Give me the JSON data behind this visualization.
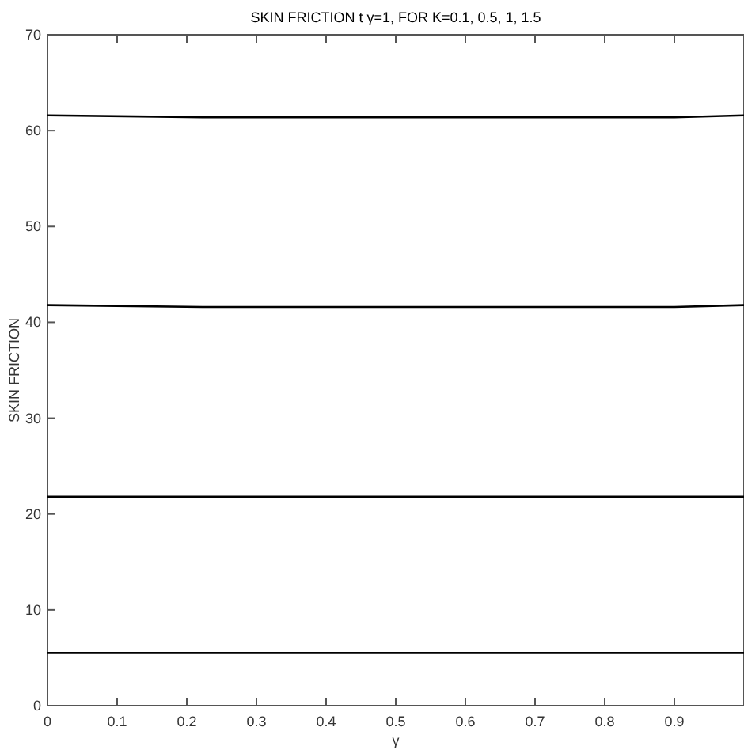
{
  "chart_data": {
    "type": "line",
    "title": "SKIN FRICTION t γ=1, FOR K=0.1, 0.5, 1, 1.5",
    "xlabel": "γ",
    "ylabel": "SKIN FRICTION",
    "x": [
      0,
      0.23,
      0.9,
      1
    ],
    "series": [
      {
        "color": "#000000",
        "values": [
          61.6,
          61.4,
          61.4,
          61.6
        ]
      },
      {
        "color": "#000000",
        "values": [
          41.8,
          41.6,
          41.6,
          41.8
        ]
      },
      {
        "color": "#000000",
        "values": [
          21.8,
          21.8,
          21.8,
          21.8
        ]
      },
      {
        "color": "#000000",
        "values": [
          5.5,
          5.5,
          5.5,
          5.5
        ]
      }
    ],
    "xlim": [
      0,
      1
    ],
    "ylim": [
      0,
      70
    ],
    "xticks": [
      0,
      0.1,
      0.2,
      0.3,
      0.4,
      0.5,
      0.6,
      0.7,
      0.8,
      0.9
    ],
    "yticks": [
      0,
      10,
      20,
      30,
      40,
      50,
      60,
      70
    ],
    "grid": false,
    "marker": "none",
    "line_style": "solid"
  }
}
